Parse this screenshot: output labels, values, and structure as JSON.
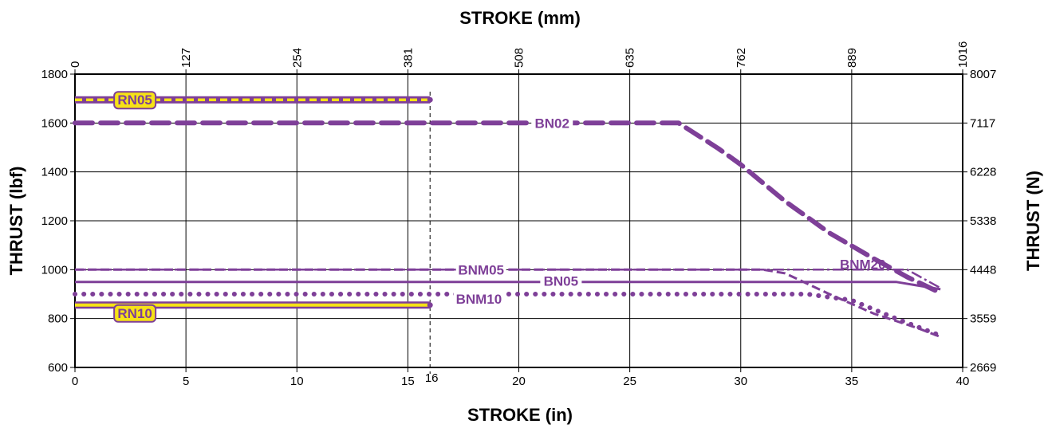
{
  "chart_data": {
    "type": "line",
    "xlabel_bottom": "STROKE (in)",
    "xlabel_top": "STROKE (mm)",
    "ylabel_left": "THRUST (lbf)",
    "ylabel_right": "THRUST (N)",
    "xlim": [
      0,
      40
    ],
    "ylim": [
      600,
      1800
    ],
    "x_ticks": [
      "0",
      "5",
      "10",
      "15",
      "20",
      "25",
      "30",
      "35",
      "40"
    ],
    "x_ticks_top": [
      "0",
      "127",
      "254",
      "381",
      "508",
      "635",
      "762",
      "889",
      "1016"
    ],
    "y_ticks": [
      "600",
      "800",
      "1000",
      "1200",
      "1400",
      "1600",
      "1800"
    ],
    "y_ticks_right": [
      "2669",
      "3559",
      "4448",
      "5338",
      "6228",
      "7117",
      "8007"
    ],
    "marker_x": 16,
    "marker_label": "16",
    "grid": true,
    "series": [
      {
        "name": "RN05",
        "style": "yellow-dashed",
        "x": [
          0,
          16
        ],
        "y": [
          1695,
          1695
        ]
      },
      {
        "name": "BN02",
        "style": "purple-heavy-dash",
        "x": [
          0,
          27.2,
          29,
          30,
          32,
          34,
          36,
          37.5,
          39
        ],
        "y": [
          1600,
          1600,
          1495,
          1430,
          1280,
          1150,
          1045,
          970,
          905
        ]
      },
      {
        "name": "BNM05",
        "style": "purple-thin-dash",
        "x": [
          0,
          31,
          32,
          34,
          36,
          38,
          39
        ],
        "y": [
          1000,
          1000,
          985,
          900,
          820,
          760,
          725
        ]
      },
      {
        "name": "BNM20",
        "style": "purple-dash-dot",
        "x": [
          0,
          37.5,
          39
        ],
        "y": [
          1000,
          1000,
          925
        ]
      },
      {
        "name": "BN05",
        "style": "purple-solid",
        "x": [
          0,
          37,
          39
        ],
        "y": [
          950,
          950,
          920
        ]
      },
      {
        "name": "BNM10",
        "style": "purple-dotted",
        "x": [
          0,
          33,
          35,
          37,
          39
        ],
        "y": [
          900,
          900,
          875,
          800,
          730
        ]
      },
      {
        "name": "RN10",
        "style": "yellow-solid",
        "x": [
          0,
          16
        ],
        "y": [
          855,
          855
        ]
      }
    ],
    "colors": {
      "purple": "#7e3f98",
      "yellow": "#f6e216"
    }
  }
}
